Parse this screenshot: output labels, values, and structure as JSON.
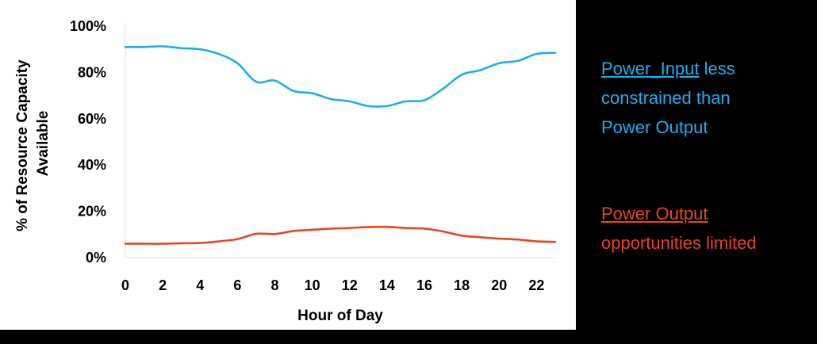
{
  "chart_data": {
    "type": "line",
    "xlabel": "Hour of Day",
    "ylabel": [
      "% of Resource Capacity",
      "Available"
    ],
    "xlim": [
      0,
      23
    ],
    "ylim": [
      0,
      100
    ],
    "x_ticks": [
      0,
      2,
      4,
      6,
      8,
      10,
      12,
      14,
      16,
      18,
      20,
      22
    ],
    "y_ticks": [
      0,
      20,
      40,
      60,
      80,
      100
    ],
    "y_tick_labels": [
      "0%",
      "20%",
      "40%",
      "60%",
      "80%",
      "100%"
    ],
    "grid": false,
    "x": [
      0,
      1,
      2,
      3,
      4,
      5,
      6,
      7,
      8,
      9,
      10,
      11,
      12,
      13,
      14,
      15,
      16,
      17,
      18,
      19,
      20,
      21,
      22,
      23
    ],
    "series": [
      {
        "color": "#1ab0ec",
        "values": [
          91,
          91,
          91.3,
          90.5,
          90,
          88,
          84,
          76,
          76.5,
          72,
          71,
          68.5,
          67.5,
          65.5,
          65.5,
          67.5,
          68,
          73,
          79,
          81,
          84,
          85,
          88,
          88.5
        ]
      },
      {
        "color": "#e8461c",
        "values": [
          6,
          6,
          6,
          6.2,
          6.3,
          7,
          8,
          10.3,
          10.2,
          11.5,
          12,
          12.5,
          12.8,
          13.2,
          13.3,
          12.8,
          12.5,
          11.3,
          9.5,
          8.8,
          8.2,
          7.8,
          7,
          6.8
        ]
      }
    ]
  },
  "annotations": {
    "input_note": {
      "color": "#1ab0ec",
      "lines": [
        "Power_Input less",
        "constrained than",
        "Power Output"
      ]
    },
    "output_note": {
      "color": "#e8461c",
      "lines": [
        "Power Output",
        "opportunities limited"
      ]
    }
  }
}
